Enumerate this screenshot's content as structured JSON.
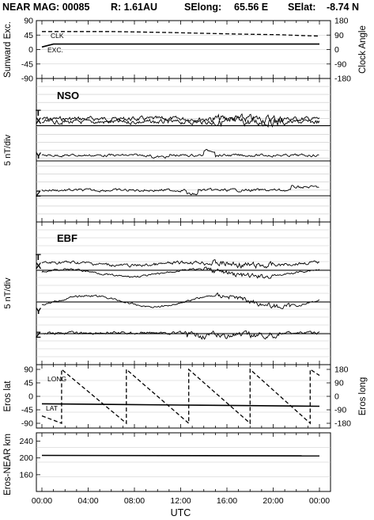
{
  "header": {
    "mission": "NEAR MAG: 00085",
    "range": "R: 1.61AU",
    "selong_label": "SElong:",
    "selong_value": "65.56 E",
    "selat_label": "SElat:",
    "selat_value": "-8.74 N"
  },
  "chart_data": [
    {
      "type": "line",
      "panel": "sunward",
      "ylabel": "Sunward Exc.",
      "ylabel_right": "Clock Angle",
      "ylim": [
        -90,
        90
      ],
      "yticks": [
        "90",
        "45",
        "0",
        "-45",
        "-90"
      ],
      "yticks_right": [
        "180",
        "90",
        "0",
        "-90",
        "-180"
      ],
      "series": [
        {
          "name": "CLK",
          "style": "dashed",
          "x": [
            0,
            6,
            11,
            14.5,
            17,
            20.5,
            23,
            24
          ],
          "y": [
            56,
            56,
            53,
            50,
            48,
            46,
            43,
            42
          ]
        },
        {
          "name": "EXC.",
          "style": "solid",
          "x": [
            0,
            1,
            23,
            24
          ],
          "y": [
            8,
            17,
            17,
            17
          ]
        }
      ]
    },
    {
      "type": "line",
      "panel": "nso",
      "title": "NSO",
      "ylabel": "5 nT/div",
      "traces": [
        "T",
        "X",
        "Y",
        "Z"
      ]
    },
    {
      "type": "line",
      "panel": "ebf",
      "title": "EBF",
      "ylabel": "5 nT/div",
      "traces": [
        "T",
        "X",
        "Y",
        "Z"
      ]
    },
    {
      "type": "line",
      "panel": "eros",
      "ylabel": "Eros lat",
      "ylabel_right": "Eros long",
      "ylim": [
        -90,
        90
      ],
      "yticks": [
        "90",
        "45",
        "0",
        "-45",
        "-90"
      ],
      "yticks_right": [
        "180",
        "90",
        "0",
        "-90",
        "-180"
      ],
      "series": [
        {
          "name": "LONG",
          "style": "dashed",
          "x": [
            0,
            1.7,
            1.7,
            7.3,
            7.3,
            12.7,
            12.7,
            18,
            18,
            23.2,
            23.2,
            24
          ],
          "y": [
            -65,
            -90,
            90,
            -90,
            90,
            -90,
            90,
            -90,
            90,
            -90,
            90,
            70
          ]
        },
        {
          "name": "LAT",
          "style": "solid",
          "x": [
            0,
            6,
            12,
            18,
            24
          ],
          "y": [
            -25,
            -27,
            -29,
            -31,
            -33
          ]
        }
      ]
    },
    {
      "type": "line",
      "panel": "range",
      "ylabel": "Eros-NEAR km",
      "ylim": [
        120,
        260
      ],
      "yticks": [
        "240",
        "200",
        "160"
      ],
      "series": [
        {
          "name": "Range",
          "style": "solid",
          "x": [
            0,
            24
          ],
          "y": [
            206,
            205
          ]
        }
      ]
    }
  ],
  "x_axis": {
    "label": "UTC",
    "tick_labels": [
      "00:00",
      "04:00",
      "08:00",
      "12:00",
      "16:00",
      "20:00",
      "00:00"
    ]
  }
}
